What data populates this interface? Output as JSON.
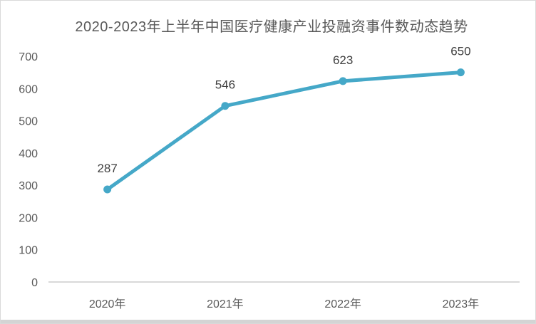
{
  "chart_data": {
    "type": "line",
    "title": "2020-2023年上半年中国医疗健康产业投融资事件数动态趋势",
    "categories": [
      "2020年",
      "2021年",
      "2022年",
      "2023年"
    ],
    "values": [
      287,
      546,
      623,
      650
    ],
    "data_labels": [
      "287",
      "546",
      "623",
      "650"
    ],
    "xlabel": "",
    "ylabel": "",
    "ylim": [
      0,
      700
    ],
    "yticks": [
      0,
      100,
      200,
      300,
      400,
      500,
      600,
      700
    ],
    "grid": false,
    "legend": "none",
    "marker": "circle",
    "colors": {
      "line": "#45a8c8",
      "marker": "#45a8c8",
      "title_text": "#595959",
      "tick_label_text": "#595959",
      "data_label_text": "#3f3f3f",
      "axis_line": "#d9d9d9",
      "card_border": "#d9d9d9",
      "bottom_edge": "#d4d4d4",
      "background": "#ffffff"
    }
  }
}
